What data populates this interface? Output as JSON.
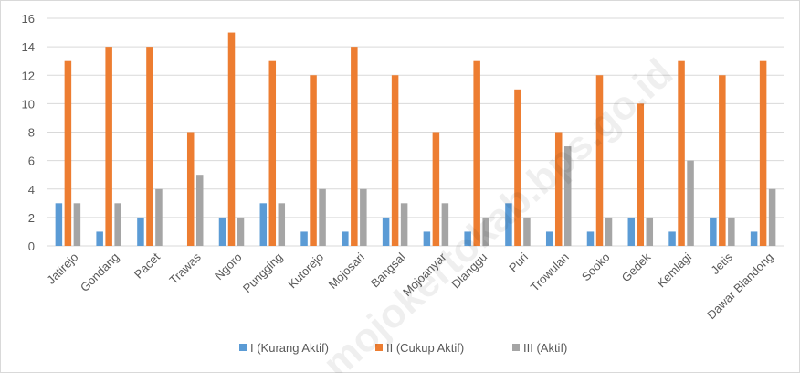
{
  "watermark": "mojokertokab.bps.go.id",
  "chart_data": {
    "type": "bar",
    "title": "",
    "xlabel": "",
    "ylabel": "",
    "ylim": [
      0,
      16
    ],
    "yticks": [
      "0",
      "2",
      "4",
      "6",
      "8",
      "10",
      "12",
      "14",
      "16"
    ],
    "grid": true,
    "legend_position": "bottom",
    "categories": [
      "Jatirejo",
      "Gondang",
      "Pacet",
      "Trawas",
      "Ngoro",
      "Pungging",
      "Kutorejo",
      "Mojosari",
      "Bangsal",
      "Mojoanyar",
      "Dlanggu",
      "Puri",
      "Trowulan",
      "Sooko",
      "Gedek",
      "Kemlagi",
      "Jetis",
      "Dawar Blandong"
    ],
    "series": [
      {
        "name": "I (Kurang Aktif)",
        "color": "#5b9bd5",
        "values": [
          3,
          1,
          2,
          0,
          2,
          3,
          1,
          1,
          2,
          1,
          1,
          3,
          1,
          1,
          2,
          1,
          2,
          1
        ]
      },
      {
        "name": "II (Cukup Aktif)",
        "color": "#ed7d31",
        "values": [
          13,
          14,
          14,
          8,
          15,
          13,
          12,
          14,
          12,
          8,
          13,
          11,
          8,
          12,
          10,
          13,
          12,
          13
        ]
      },
      {
        "name": "III (Aktif)",
        "color": "#a5a5a5",
        "values": [
          3,
          3,
          4,
          5,
          2,
          3,
          4,
          4,
          3,
          3,
          2,
          2,
          7,
          2,
          2,
          6,
          2,
          4
        ]
      }
    ]
  }
}
